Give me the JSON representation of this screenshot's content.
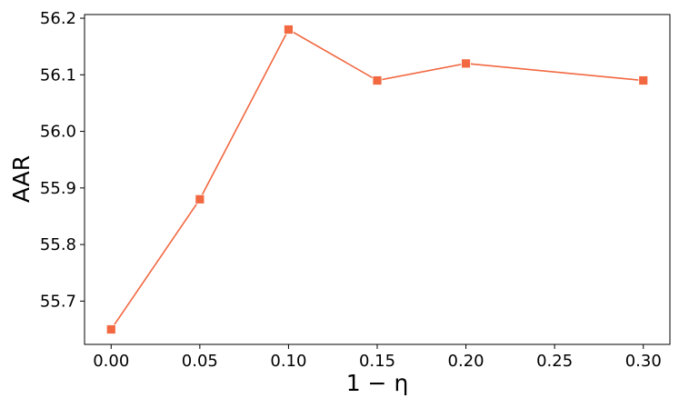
{
  "chart_data": {
    "type": "line",
    "x": [
      0,
      0.05,
      0.1,
      0.15,
      0.2,
      0.3
    ],
    "series": [
      {
        "color": "#f26841",
        "values": [
          55.65,
          55.88,
          56.18,
          56.09,
          56.12,
          56.09
        ]
      }
    ],
    "xlabel": "1 − η",
    "ylabel": "AAR",
    "xlim": [
      -0.015,
      0.315
    ],
    "ylim": [
      55.6235,
      56.2065
    ],
    "xticks": [
      {
        "value": 0,
        "label": "0.00"
      },
      {
        "value": 0.05,
        "label": "0.05"
      },
      {
        "value": 0.1,
        "label": "0.10"
      },
      {
        "value": 0.15,
        "label": "0.15"
      },
      {
        "value": 0.2,
        "label": "0.20"
      },
      {
        "value": 0.25,
        "label": "0.25"
      },
      {
        "value": 0.3,
        "label": "0.30"
      }
    ],
    "yticks": [
      55.7,
      55.8,
      55.9,
      {
        "value": 56,
        "label": "56.0"
      },
      56.1,
      56.2
    ],
    "grid": false
  }
}
